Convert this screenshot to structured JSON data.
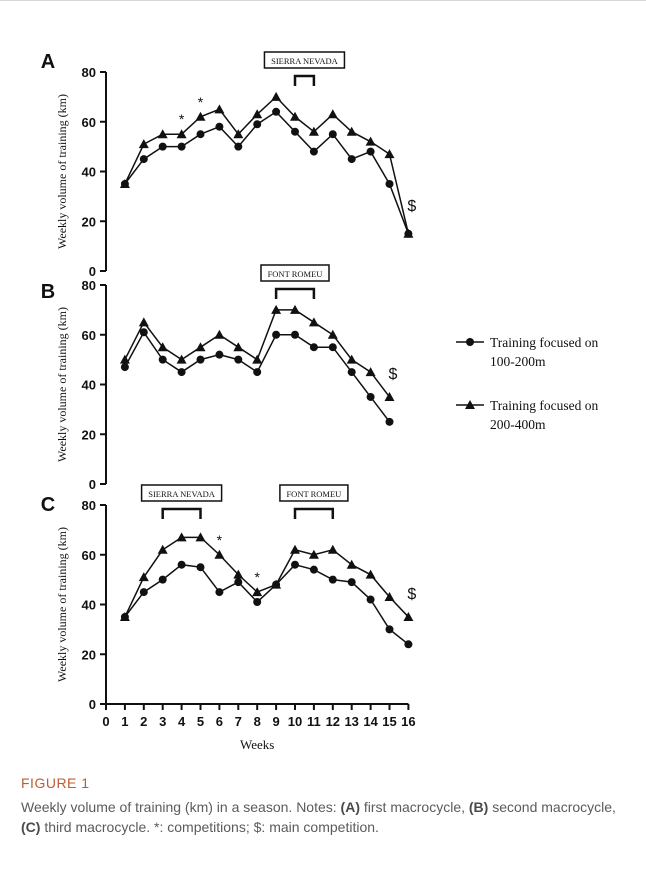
{
  "chart_data": [
    {
      "type": "line",
      "panel": "A",
      "ylabel": "Weekly volume of training (km)",
      "ylim": [
        0,
        80
      ],
      "yticks": [
        "0",
        "20",
        "40",
        "60",
        "80"
      ],
      "annotation": "SIERRA NEVADA",
      "annotation_span": [
        10,
        11
      ],
      "x": [
        1,
        2,
        3,
        4,
        5,
        6,
        7,
        8,
        9,
        10,
        11,
        12,
        13,
        14,
        15,
        16
      ],
      "series": [
        {
          "name": "Training focused on 100-200m",
          "marker": "circle",
          "values": [
            35,
            45,
            50,
            50,
            55,
            58,
            50,
            59,
            64,
            56,
            48,
            55,
            45,
            48,
            35,
            15
          ]
        },
        {
          "name": "Training focused on 200-400m",
          "marker": "triangle",
          "values": [
            35,
            51,
            55,
            55,
            62,
            65,
            55,
            63,
            70,
            62,
            56,
            63,
            56,
            52,
            47,
            15
          ]
        }
      ],
      "competition_marks": [
        4,
        5
      ],
      "main_competition_week": 16
    },
    {
      "type": "line",
      "panel": "B",
      "ylabel": "Weekly volume of training (km)",
      "ylim": [
        0,
        80
      ],
      "yticks": [
        "0",
        "20",
        "40",
        "60",
        "80"
      ],
      "annotation": "FONT ROMEU",
      "annotation_span": [
        9,
        11
      ],
      "x": [
        1,
        2,
        3,
        4,
        5,
        6,
        7,
        8,
        9,
        10,
        11,
        12,
        13,
        14,
        15
      ],
      "series": [
        {
          "name": "Training focused on 100-200m",
          "marker": "circle",
          "values": [
            47,
            61,
            50,
            45,
            50,
            52,
            50,
            45,
            60,
            60,
            55,
            55,
            45,
            35,
            25
          ]
        },
        {
          "name": "Training focused on 200-400m",
          "marker": "triangle",
          "values": [
            50,
            65,
            55,
            50,
            55,
            60,
            55,
            50,
            70,
            70,
            65,
            60,
            50,
            45,
            35
          ]
        }
      ],
      "competition_marks": [],
      "main_competition_week": 15
    },
    {
      "type": "line",
      "panel": "C",
      "ylabel": "Weekly volume of training (km)",
      "xlabel": "Weeks",
      "ylim": [
        0,
        80
      ],
      "yticks": [
        "0",
        "20",
        "40",
        "60",
        "80"
      ],
      "xticks": [
        "0",
        "1",
        "2",
        "3",
        "4",
        "5",
        "6",
        "7",
        "8",
        "9",
        "10",
        "11",
        "12",
        "13",
        "14",
        "15",
        "16"
      ],
      "annotations": [
        {
          "text": "SIERRA NEVADA",
          "span": [
            3,
            5
          ]
        },
        {
          "text": "FONT ROMEU",
          "span": [
            10,
            12
          ]
        }
      ],
      "x": [
        1,
        2,
        3,
        4,
        5,
        6,
        7,
        8,
        9,
        10,
        11,
        12,
        13,
        14,
        15,
        16
      ],
      "series": [
        {
          "name": "Training focused on 100-200m",
          "marker": "circle",
          "values": [
            35,
            45,
            50,
            56,
            55,
            45,
            49,
            41,
            48,
            56,
            54,
            50,
            49,
            42,
            30,
            24
          ]
        },
        {
          "name": "Training focused on 200-400m",
          "marker": "triangle",
          "values": [
            35,
            51,
            62,
            67,
            67,
            60,
            52,
            45,
            48,
            62,
            60,
            62,
            56,
            52,
            43,
            35
          ]
        }
      ],
      "competition_marks": [
        6,
        8
      ],
      "main_competition_week": 16
    }
  ],
  "legend": {
    "circle_label": "Training focused on 100-200m",
    "triangle_label": "Training focused on 200-400m"
  },
  "marks": {
    "competition_symbol": "*",
    "main_competition_symbol": "$"
  },
  "caption": {
    "label": "FIGURE 1",
    "line1": "Weekly volume of training (km) in a season. Notes: ",
    "a_tag": "(A)",
    "a_text": " first macrocycle, ",
    "b_tag": "(B)",
    "b_text": " second macrocycle, ",
    "c_tag": "(C)",
    "c_text": " third macrocycle. *: competitions; $: main competition."
  }
}
